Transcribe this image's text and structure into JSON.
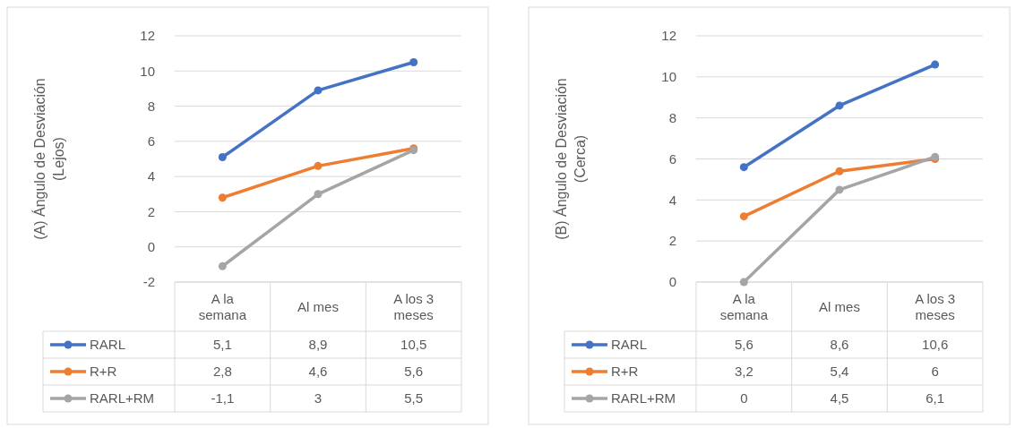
{
  "chart_data": [
    {
      "type": "line",
      "ylabel": "(A) Ángulo de Desviación (Lejos)",
      "categories": [
        "A la semana",
        "Al mes",
        "A los 3 meses"
      ],
      "ylim": [
        -2,
        12
      ],
      "yticks": [
        -2,
        0,
        2,
        4,
        6,
        8,
        10,
        12
      ],
      "grid": "y",
      "legend": "bottom",
      "marker": "circle",
      "series": [
        {
          "name": "RARL",
          "color": "#4472c4",
          "values": [
            5.1,
            8.9,
            10.5
          ],
          "value_labels": [
            "5,1",
            "8,9",
            "10,5"
          ]
        },
        {
          "name": "R+R",
          "color": "#ed7d31",
          "values": [
            2.8,
            4.6,
            5.6
          ],
          "value_labels": [
            "2,8",
            "4,6",
            "5,6"
          ]
        },
        {
          "name": "RARL+RM",
          "color": "#a5a5a5",
          "values": [
            -1.1,
            3,
            5.5
          ],
          "value_labels": [
            "-1,1",
            "3",
            "5,5"
          ]
        }
      ]
    },
    {
      "type": "line",
      "ylabel": "(B) Ángulo de Desviación (Cerca)",
      "categories": [
        "A la semana",
        "Al mes",
        "A los 3 meses"
      ],
      "ylim": [
        0,
        12
      ],
      "yticks": [
        0,
        2,
        4,
        6,
        8,
        10,
        12
      ],
      "grid": "y",
      "legend": "bottom",
      "marker": "circle",
      "series": [
        {
          "name": "RARL",
          "color": "#4472c4",
          "values": [
            5.6,
            8.6,
            10.6
          ],
          "value_labels": [
            "5,6",
            "8,6",
            "10,6"
          ]
        },
        {
          "name": "R+R",
          "color": "#ed7d31",
          "values": [
            3.2,
            5.4,
            6
          ],
          "value_labels": [
            "3,2",
            "5,4",
            "6"
          ]
        },
        {
          "name": "RARL+RM",
          "color": "#a5a5a5",
          "values": [
            0,
            4.5,
            6.1
          ],
          "value_labels": [
            "0",
            "4,5",
            "6,1"
          ]
        }
      ]
    }
  ]
}
